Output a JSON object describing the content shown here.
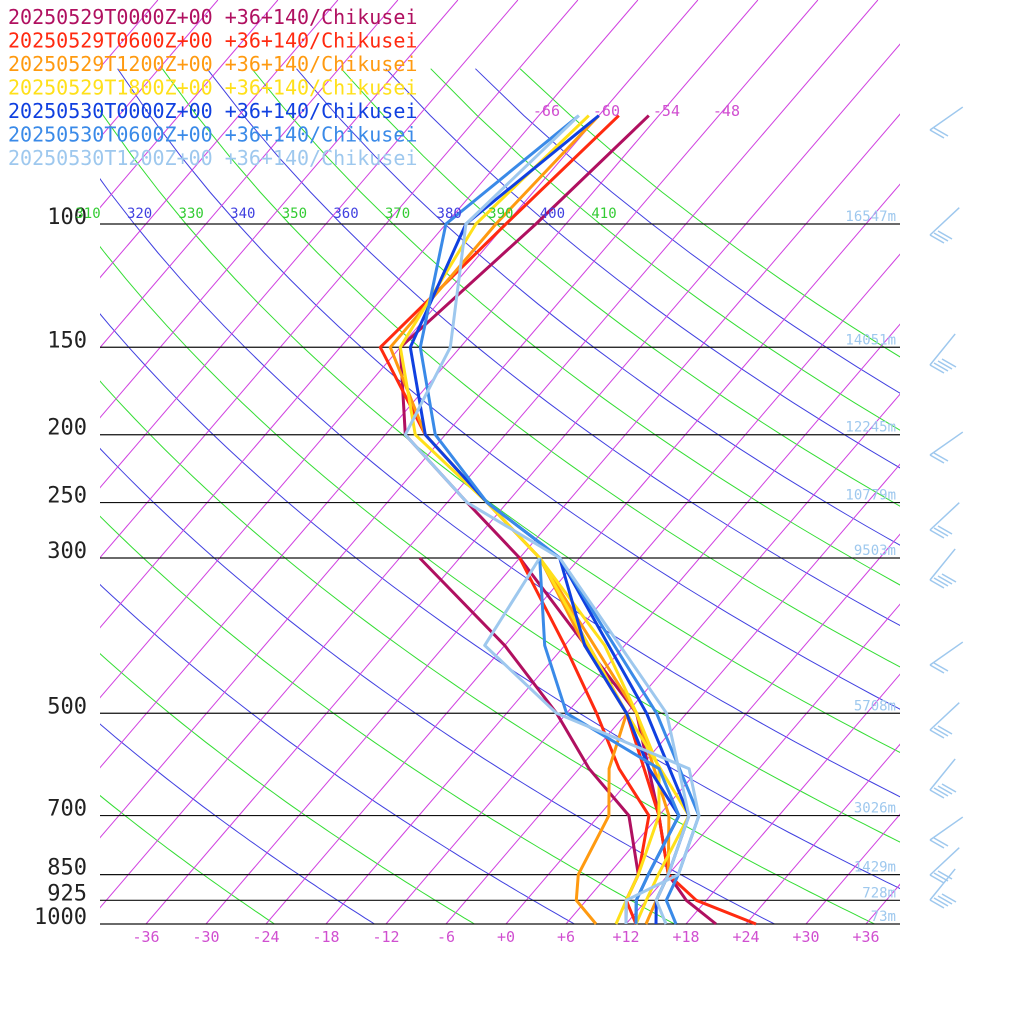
{
  "chart_data": {
    "type": "line",
    "subtype": "skew-t log-p",
    "pressure_levels": [
      100,
      150,
      200,
      250,
      300,
      500,
      700,
      850,
      925,
      1000
    ],
    "height_labels": [
      {
        "p": 100,
        "label": "16547m"
      },
      {
        "p": 150,
        "label": "14051m"
      },
      {
        "p": 200,
        "label": "12245m"
      },
      {
        "p": 250,
        "label": "10779m"
      },
      {
        "p": 300,
        "label": "9503m"
      },
      {
        "p": 500,
        "label": "5708m"
      },
      {
        "p": 700,
        "label": "3026m"
      },
      {
        "p": 850,
        "label": "1429m"
      },
      {
        "p": 925,
        "label": "728m"
      },
      {
        "p": 1000,
        "label": "73m"
      }
    ],
    "x_ticks": [
      "-36",
      "-30",
      "-24",
      "-18",
      "-12",
      "-6",
      "+0",
      "+6",
      "+12",
      "+18",
      "+24",
      "+30",
      "+36"
    ],
    "x_tick_values": [
      -36,
      -30,
      -24,
      -18,
      -12,
      -6,
      0,
      6,
      12,
      18,
      24,
      30,
      36
    ],
    "upper_isotherm_labels": [
      {
        "t": -66,
        "label": "-66"
      },
      {
        "t": -60,
        "label": "-60"
      },
      {
        "t": -54,
        "label": "-54"
      },
      {
        "t": -48,
        "label": "-48"
      }
    ],
    "theta_labels": [
      {
        "label": "310",
        "color": "#33cc33"
      },
      {
        "label": "320",
        "color": "#4040e0"
      },
      {
        "label": "330",
        "color": "#33cc33"
      },
      {
        "label": "340",
        "color": "#4040e0"
      },
      {
        "label": "350",
        "color": "#33cc33"
      },
      {
        "label": "360",
        "color": "#4040e0"
      },
      {
        "label": "370",
        "color": "#33cc33"
      },
      {
        "label": "380",
        "color": "#4040e0"
      },
      {
        "label": "390",
        "color": "#33cc33"
      },
      {
        "label": "400",
        "color": "#4040e0"
      },
      {
        "label": "410",
        "color": "#33cc33"
      }
    ],
    "series": [
      {
        "name": "20250529T0000Z+00 +36+140/Chikusei",
        "color": "#b01060",
        "temp": [
          [
            1000,
            21
          ],
          [
            925,
            16
          ],
          [
            850,
            12
          ],
          [
            700,
            6
          ],
          [
            500,
            -5
          ],
          [
            300,
            -30
          ],
          [
            250,
            -40
          ],
          [
            200,
            -52
          ],
          [
            150,
            -60
          ],
          [
            100,
            -57
          ],
          [
            70,
            -55
          ]
        ],
        "dew": [
          [
            1000,
            12
          ],
          [
            925,
            10
          ],
          [
            850,
            9
          ],
          [
            700,
            3
          ],
          [
            600,
            -5
          ],
          [
            500,
            -13
          ],
          [
            400,
            -24
          ],
          [
            300,
            -40
          ]
        ]
      },
      {
        "name": "20250529T0600Z+00 +36+140/Chikusei",
        "color": "#ff2a10",
        "temp": [
          [
            1000,
            25
          ],
          [
            925,
            17
          ],
          [
            850,
            12
          ],
          [
            700,
            6
          ],
          [
            500,
            -6
          ],
          [
            300,
            -28
          ],
          [
            250,
            -38
          ],
          [
            200,
            -50
          ],
          [
            150,
            -62
          ],
          [
            100,
            -60
          ],
          [
            70,
            -58
          ]
        ],
        "dew": [
          [
            1000,
            13
          ],
          [
            925,
            10
          ],
          [
            850,
            9
          ],
          [
            700,
            5
          ],
          [
            600,
            -2
          ],
          [
            500,
            -9
          ],
          [
            400,
            -18
          ],
          [
            300,
            -30
          ]
        ]
      },
      {
        "name": "20250529T1200Z+00 +36+140/Chikusei",
        "color": "#ff9a10",
        "temp": [
          [
            1000,
            14
          ],
          [
            925,
            13
          ],
          [
            850,
            12
          ],
          [
            700,
            7
          ],
          [
            500,
            -5
          ],
          [
            300,
            -28
          ],
          [
            250,
            -38
          ],
          [
            200,
            -50
          ],
          [
            150,
            -61
          ],
          [
            100,
            -61
          ],
          [
            70,
            -60
          ]
        ],
        "dew": [
          [
            1000,
            9
          ],
          [
            925,
            5
          ],
          [
            850,
            3
          ],
          [
            700,
            1
          ],
          [
            600,
            -3
          ],
          [
            500,
            -6
          ],
          [
            400,
            -16
          ],
          [
            300,
            -28
          ]
        ]
      },
      {
        "name": "20250529T1800Z+00 +36+140/Chikusei",
        "color": "#ffe01a",
        "temp": [
          [
            1000,
            13
          ],
          [
            925,
            12
          ],
          [
            850,
            11
          ],
          [
            700,
            9
          ],
          [
            500,
            -6
          ],
          [
            300,
            -28
          ],
          [
            250,
            -38
          ],
          [
            200,
            -51
          ],
          [
            150,
            -60
          ],
          [
            100,
            -63
          ],
          [
            70,
            -61
          ]
        ],
        "dew": [
          [
            1000,
            11
          ],
          [
            925,
            10
          ],
          [
            850,
            9
          ],
          [
            700,
            6
          ],
          [
            600,
            2
          ],
          [
            500,
            -5
          ],
          [
            400,
            -14
          ],
          [
            300,
            -28
          ]
        ]
      },
      {
        "name": "20250530T0000Z+00 +36+140/Chikusei",
        "color": "#1040e0",
        "temp": [
          [
            1000,
            15
          ],
          [
            925,
            13
          ],
          [
            850,
            12
          ],
          [
            700,
            9
          ],
          [
            500,
            -4
          ],
          [
            300,
            -26
          ],
          [
            250,
            -38
          ],
          [
            200,
            -50
          ],
          [
            150,
            -59
          ],
          [
            100,
            -64
          ],
          [
            70,
            -60
          ]
        ],
        "dew": [
          [
            1000,
            13
          ],
          [
            925,
            11
          ],
          [
            850,
            10
          ],
          [
            700,
            8
          ],
          [
            600,
            1
          ],
          [
            500,
            -6
          ],
          [
            400,
            -16
          ],
          [
            300,
            -26
          ]
        ]
      },
      {
        "name": "20250530T0600Z+00 +36+140/Chikusei",
        "color": "#3a8ae8",
        "temp": [
          [
            1000,
            17
          ],
          [
            925,
            14
          ],
          [
            850,
            13
          ],
          [
            700,
            10
          ],
          [
            500,
            -3
          ],
          [
            300,
            -26
          ],
          [
            250,
            -38
          ],
          [
            200,
            -49
          ],
          [
            150,
            -58
          ],
          [
            100,
            -66
          ],
          [
            70,
            -62
          ]
        ],
        "dew": [
          [
            1000,
            13
          ],
          [
            925,
            11
          ],
          [
            850,
            10
          ],
          [
            700,
            8
          ],
          [
            600,
            2
          ],
          [
            500,
            -12
          ],
          [
            400,
            -20
          ],
          [
            300,
            -28
          ]
        ]
      },
      {
        "name": "20250530T1200Z+00 +36+140/Chikusei",
        "color": "#9ec8ee",
        "temp": [
          [
            1000,
            16
          ],
          [
            925,
            13
          ],
          [
            850,
            12
          ],
          [
            700,
            9
          ],
          [
            500,
            -2
          ],
          [
            300,
            -26
          ],
          [
            250,
            -40
          ],
          [
            200,
            -52
          ],
          [
            150,
            -55
          ],
          [
            100,
            -64
          ],
          [
            70,
            -62
          ]
        ],
        "dew": [
          [
            1000,
            12
          ],
          [
            925,
            10
          ],
          [
            850,
            13
          ],
          [
            700,
            10
          ],
          [
            600,
            5
          ],
          [
            500,
            -13
          ],
          [
            400,
            -26
          ],
          [
            300,
            -28
          ]
        ]
      }
    ]
  }
}
